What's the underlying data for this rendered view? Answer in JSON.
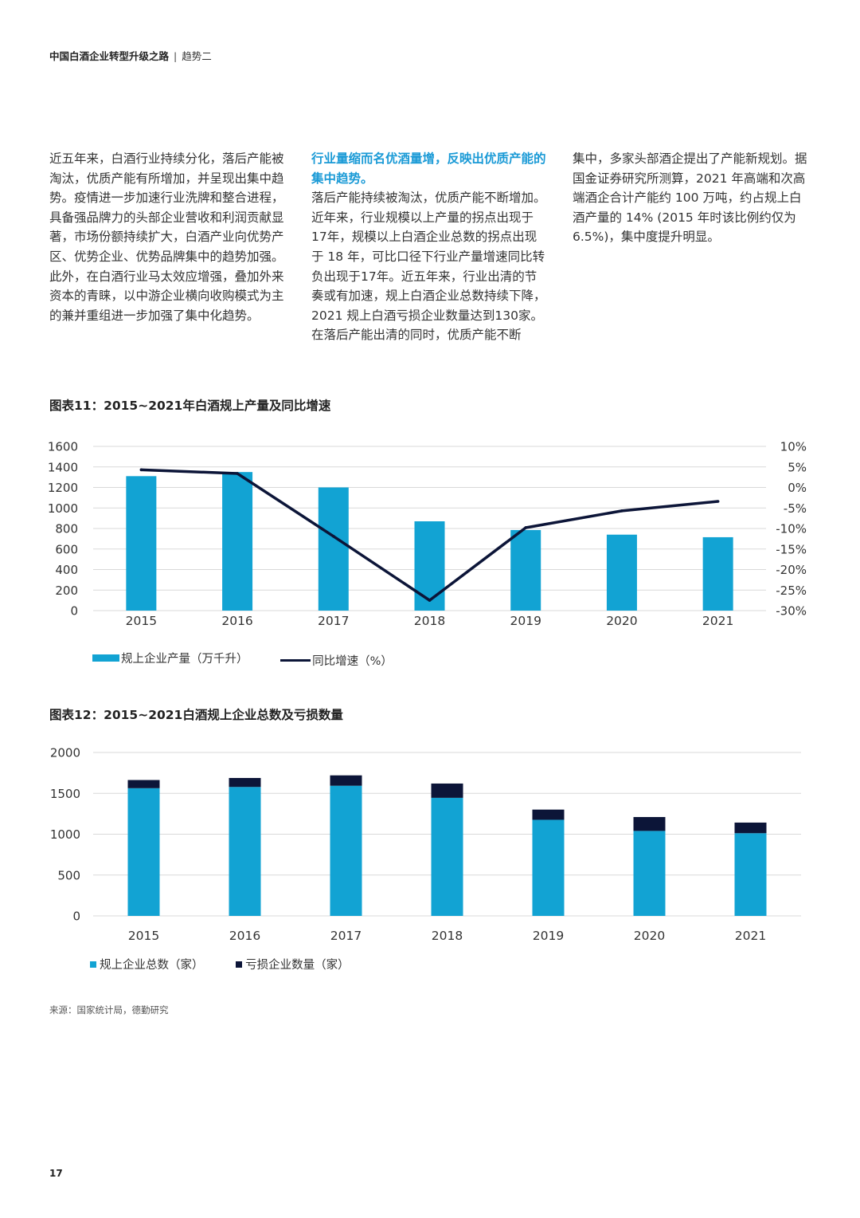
{
  "header": {
    "title": "中国白酒企业转型升级之路",
    "separator": "|",
    "section": "趋势二"
  },
  "columns": {
    "col1": "近五年来，白酒行业持续分化，落后产能被淘汰，优质产能有所增加，并呈现出集中趋势。疫情进一步加速行业洗牌和整合进程，具备强品牌力的头部企业营收和利润贡献显著，市场份额持续扩大，白酒产业向优势产区、优势企业、优势品牌集中的趋势加强。此外，在白酒行业马太效应增强，叠加外来资本的青睐，以中游企业横向收购模式为主的兼并重组进一步加强了集中化趋势。",
    "col2_highlight": "行业量缩而名优酒量增，反映出优质产能的集中趋势。",
    "col2_body": "落后产能持续被淘汰，优质产能不断增加。近年来，行业规模以上产量的拐点出现于 17年，规模以上白酒企业总数的拐点出现于 18 年，可比口径下行业产量增速同比转负出现于17年。近五年来，行业出清的节奏或有加速，规上白酒企业总数持续下降，2021 规上白酒亏损企业数量达到130家。在落后产能出清的同时，优质产能不断",
    "col3": "集中，多家头部酒企提出了产能新规划。据国金证券研究所测算，2021 年高端和次高端酒企合计产能约 100 万吨，约占规上白酒产量的 14% (2015 年时该比例约仅为 6.5%)，集中度提升明显。"
  },
  "chart11": {
    "title": "图表11：2015~2021年白酒规上产量及同比增速"
  },
  "chart12": {
    "title": "图表12：2015~2021白酒规上企业总数及亏损数量"
  },
  "chart_data": [
    {
      "type": "bar+line",
      "title": "图表11：2015~2021年白酒规上产量及同比增速",
      "categories": [
        "2015",
        "2016",
        "2017",
        "2018",
        "2019",
        "2020",
        "2021"
      ],
      "series": [
        {
          "name": "规上企业产量（万千升）",
          "type": "bar",
          "axis": "left",
          "color": "#12a3d3",
          "values": [
            1310,
            1350,
            1200,
            870,
            785,
            740,
            715
          ]
        },
        {
          "name": "同比增速（%）",
          "type": "line",
          "axis": "right",
          "color": "#0c1538",
          "values": [
            4.3,
            3.4,
            -11.9,
            -27.5,
            -9.8,
            -5.7,
            -3.4
          ]
        }
      ],
      "left_axis": {
        "ylim": [
          0,
          1600
        ],
        "ticks": [
          "0",
          "200",
          "400",
          "600",
          "800",
          "1000",
          "1200",
          "1400",
          "1600"
        ]
      },
      "right_axis": {
        "ylim": [
          -30,
          10
        ],
        "ticks": [
          "-30%",
          "-25%",
          "-20%",
          "-15%",
          "-10%",
          "-5%",
          "0%",
          "5%",
          "10%"
        ]
      },
      "legend": [
        "规上企业产量（万千升）",
        "同比增速（%）"
      ],
      "legend_position": "bottom-left"
    },
    {
      "type": "stacked-bar",
      "title": "图表12：2015~2021白酒规上企业总数及亏损数量",
      "categories": [
        "2015",
        "2016",
        "2017",
        "2018",
        "2019",
        "2020",
        "2021"
      ],
      "series": [
        {
          "name": "规上企业总数（家）",
          "color": "#12a3d3",
          "values": [
            1563,
            1578,
            1593,
            1445,
            1176,
            1040,
            1012
          ]
        },
        {
          "name": "亏损企业数量（家）",
          "color": "#0c1538",
          "values": [
            100,
            110,
            127,
            175,
            125,
            170,
            130
          ]
        }
      ],
      "ylim": [
        0,
        2000
      ],
      "ticks": [
        "0",
        "500",
        "1000",
        "1500",
        "2000"
      ],
      "legend": [
        "规上企业总数（家）",
        "亏损企业数量（家）"
      ],
      "legend_position": "bottom-left"
    }
  ],
  "source": "来源：国家统计局，德勤研究",
  "page_number": "17"
}
